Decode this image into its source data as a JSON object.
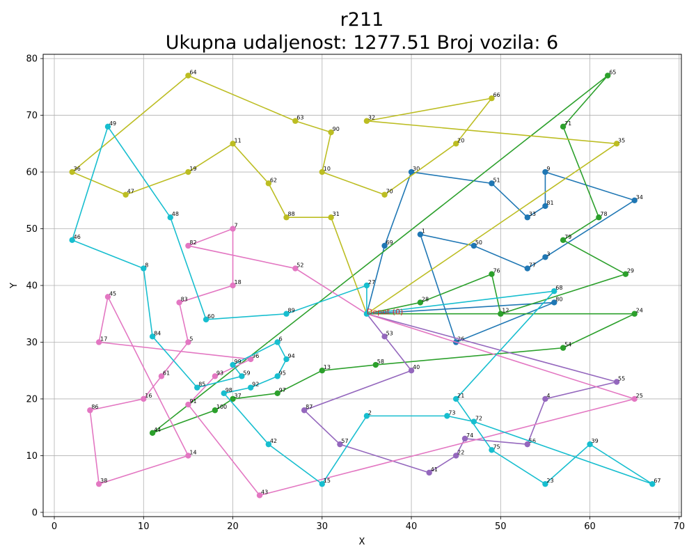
{
  "chart_data": {
    "type": "scatter",
    "title": "r211",
    "subtitle": "Ukupna udaljenost: 1277.51    Broj vozila: 6",
    "xlabel": "X",
    "ylabel": "Y",
    "xlim": [
      -1.25,
      70.25
    ],
    "ylim": [
      -0.75,
      80.75
    ],
    "xticks": [
      0,
      10,
      20,
      30,
      40,
      50,
      60,
      70
    ],
    "yticks": [
      0,
      10,
      20,
      30,
      40,
      50,
      60,
      70,
      80
    ],
    "grid": true,
    "depot": {
      "label": "Depot (0)",
      "x": 35,
      "y": 35,
      "color": "#d62728"
    },
    "routes": [
      {
        "color": "#1f77b4",
        "stops": [
          {
            "id": "69",
            "x": 37,
            "y": 47
          },
          {
            "id": "30",
            "x": 40,
            "y": 60
          },
          {
            "id": "51",
            "x": 49,
            "y": 58
          },
          {
            "id": "33",
            "x": 53,
            "y": 52
          },
          {
            "id": "81",
            "x": 55,
            "y": 54
          },
          {
            "id": "9",
            "x": 55,
            "y": 60
          },
          {
            "id": "34",
            "x": 65,
            "y": 55
          },
          {
            "id": "3",
            "x": 55,
            "y": 45
          },
          {
            "id": "77",
            "x": 53,
            "y": 43
          },
          {
            "id": "50",
            "x": 47,
            "y": 47
          },
          {
            "id": "1",
            "x": 41,
            "y": 49
          },
          {
            "id": "26",
            "x": 45,
            "y": 30
          },
          {
            "id": "80",
            "x": 56,
            "y": 37
          }
        ]
      },
      {
        "color": "#2ca02c",
        "stops": [
          {
            "id": "28",
            "x": 41,
            "y": 37
          },
          {
            "id": "76",
            "x": 49,
            "y": 42
          },
          {
            "id": "12",
            "x": 50,
            "y": 35
          },
          {
            "id": "29",
            "x": 64,
            "y": 42
          },
          {
            "id": "79",
            "x": 57,
            "y": 48
          },
          {
            "id": "78",
            "x": 61,
            "y": 52
          },
          {
            "id": "71",
            "x": 57,
            "y": 68
          },
          {
            "id": "65",
            "x": 62,
            "y": 77
          },
          {
            "id": "44",
            "x": 11,
            "y": 14
          },
          {
            "id": "100",
            "x": 18,
            "y": 18
          },
          {
            "id": "37",
            "x": 20,
            "y": 20
          },
          {
            "id": "97",
            "x": 25,
            "y": 21
          },
          {
            "id": "13",
            "x": 30,
            "y": 25
          },
          {
            "id": "58",
            "x": 36,
            "y": 26
          },
          {
            "id": "54",
            "x": 57,
            "y": 29
          },
          {
            "id": "24",
            "x": 65,
            "y": 35
          }
        ]
      },
      {
        "color": "#bcbd22",
        "stops": [
          {
            "id": "31",
            "x": 31,
            "y": 52
          },
          {
            "id": "88",
            "x": 26,
            "y": 52
          },
          {
            "id": "62",
            "x": 24,
            "y": 58
          },
          {
            "id": "11",
            "x": 20,
            "y": 65
          },
          {
            "id": "19",
            "x": 15,
            "y": 60
          },
          {
            "id": "47",
            "x": 8,
            "y": 56
          },
          {
            "id": "36",
            "x": 2,
            "y": 60
          },
          {
            "id": "64",
            "x": 15,
            "y": 77
          },
          {
            "id": "63",
            "x": 27,
            "y": 69
          },
          {
            "id": "90",
            "x": 31,
            "y": 67
          },
          {
            "id": "10",
            "x": 30,
            "y": 60
          },
          {
            "id": "70",
            "x": 37,
            "y": 56
          },
          {
            "id": "20",
            "x": 45,
            "y": 65
          },
          {
            "id": "66",
            "x": 49,
            "y": 73
          },
          {
            "id": "32",
            "x": 35,
            "y": 69
          },
          {
            "id": "35",
            "x": 63,
            "y": 65
          }
        ]
      },
      {
        "color": "#9467bd",
        "stops": [
          {
            "id": "53",
            "x": 37,
            "y": 31
          },
          {
            "id": "40",
            "x": 40,
            "y": 25
          },
          {
            "id": "87",
            "x": 28,
            "y": 18
          },
          {
            "id": "57",
            "x": 32,
            "y": 12
          },
          {
            "id": "41",
            "x": 42,
            "y": 7
          },
          {
            "id": "22",
            "x": 45,
            "y": 10
          },
          {
            "id": "74",
            "x": 46,
            "y": 13
          },
          {
            "id": "56",
            "x": 53,
            "y": 12
          },
          {
            "id": "4",
            "x": 55,
            "y": 20
          },
          {
            "id": "55",
            "x": 63,
            "y": 23
          }
        ]
      },
      {
        "color": "#e377c2",
        "stops": [
          {
            "id": "52",
            "x": 27,
            "y": 43
          },
          {
            "id": "82",
            "x": 15,
            "y": 47
          },
          {
            "id": "7",
            "x": 20,
            "y": 50
          },
          {
            "id": "18",
            "x": 20,
            "y": 40
          },
          {
            "id": "83",
            "x": 14,
            "y": 37
          },
          {
            "id": "5",
            "x": 15,
            "y": 30
          },
          {
            "id": "61",
            "x": 12,
            "y": 24
          },
          {
            "id": "16",
            "x": 10,
            "y": 20
          },
          {
            "id": "86",
            "x": 4,
            "y": 18
          },
          {
            "id": "38",
            "x": 5,
            "y": 5
          },
          {
            "id": "14",
            "x": 15,
            "y": 10
          },
          {
            "id": "45",
            "x": 6,
            "y": 38
          },
          {
            "id": "17",
            "x": 5,
            "y": 30
          },
          {
            "id": "96",
            "x": 22,
            "y": 27
          },
          {
            "id": "93",
            "x": 18,
            "y": 24
          },
          {
            "id": "91",
            "x": 15,
            "y": 19
          },
          {
            "id": "43",
            "x": 23,
            "y": 3
          },
          {
            "id": "25",
            "x": 65,
            "y": 20
          }
        ]
      },
      {
        "color": "#17becf",
        "stops": [
          {
            "id": "27",
            "x": 35,
            "y": 40
          },
          {
            "id": "89",
            "x": 26,
            "y": 35
          },
          {
            "id": "60",
            "x": 17,
            "y": 34
          },
          {
            "id": "48",
            "x": 13,
            "y": 52
          },
          {
            "id": "49",
            "x": 6,
            "y": 68
          },
          {
            "id": "46",
            "x": 2,
            "y": 48
          },
          {
            "id": "8",
            "x": 10,
            "y": 43
          },
          {
            "id": "84",
            "x": 11,
            "y": 31
          },
          {
            "id": "85",
            "x": 16,
            "y": 22
          },
          {
            "id": "59",
            "x": 21,
            "y": 24
          },
          {
            "id": "99",
            "x": 20,
            "y": 26
          },
          {
            "id": "6",
            "x": 25,
            "y": 30
          },
          {
            "id": "94",
            "x": 26,
            "y": 27
          },
          {
            "id": "95",
            "x": 25,
            "y": 24
          },
          {
            "id": "92",
            "x": 22,
            "y": 22
          },
          {
            "id": "98",
            "x": 19,
            "y": 21
          },
          {
            "id": "42",
            "x": 24,
            "y": 12
          },
          {
            "id": "15",
            "x": 30,
            "y": 5
          },
          {
            "id": "2",
            "x": 35,
            "y": 17
          },
          {
            "id": "73",
            "x": 44,
            "y": 17
          },
          {
            "id": "72",
            "x": 47,
            "y": 16
          },
          {
            "id": "67",
            "x": 67,
            "y": 5
          },
          {
            "id": "39",
            "x": 60,
            "y": 12
          },
          {
            "id": "23",
            "x": 55,
            "y": 5
          },
          {
            "id": "75",
            "x": 49,
            "y": 11
          },
          {
            "id": "21",
            "x": 45,
            "y": 20
          },
          {
            "id": "68",
            "x": 56,
            "y": 39
          }
        ]
      }
    ]
  }
}
